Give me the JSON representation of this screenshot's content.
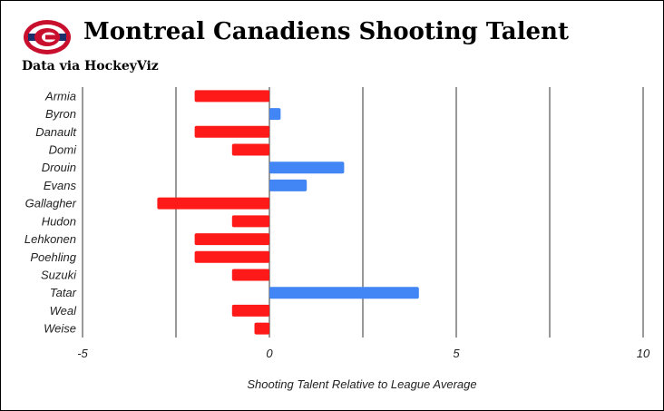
{
  "header": {
    "title": "Montreal Canadiens Shooting Talent",
    "subtitle": "Data via HockeyViz",
    "logo_icon": "montreal-canadiens-logo"
  },
  "colors": {
    "positive": "#4285f4",
    "negative": "#ff1a1a",
    "grid": "#333333",
    "logo_red": "#c8102e",
    "logo_blue": "#1b2f6b"
  },
  "chart_data": {
    "type": "bar",
    "orientation": "horizontal",
    "title": "Montreal Canadiens Shooting Talent",
    "subtitle": "Data via HockeyViz",
    "xlabel": "Shooting Talent Relative to League Average",
    "ylabel": "",
    "xlim": [
      -5,
      10
    ],
    "xticks": [
      -5,
      0,
      5,
      10
    ],
    "grid": true,
    "categories": [
      "Armia",
      "Byron",
      "Danault",
      "Domi",
      "Drouin",
      "Evans",
      "Gallagher",
      "Hudon",
      "Lehkonen",
      "Poehling",
      "Suzuki",
      "Tatar",
      "Weal",
      "Weise"
    ],
    "values": [
      -2,
      0.3,
      -2,
      -1,
      2,
      1,
      -3,
      -1,
      -2,
      -2,
      -1,
      4,
      -1,
      -0.4
    ]
  }
}
